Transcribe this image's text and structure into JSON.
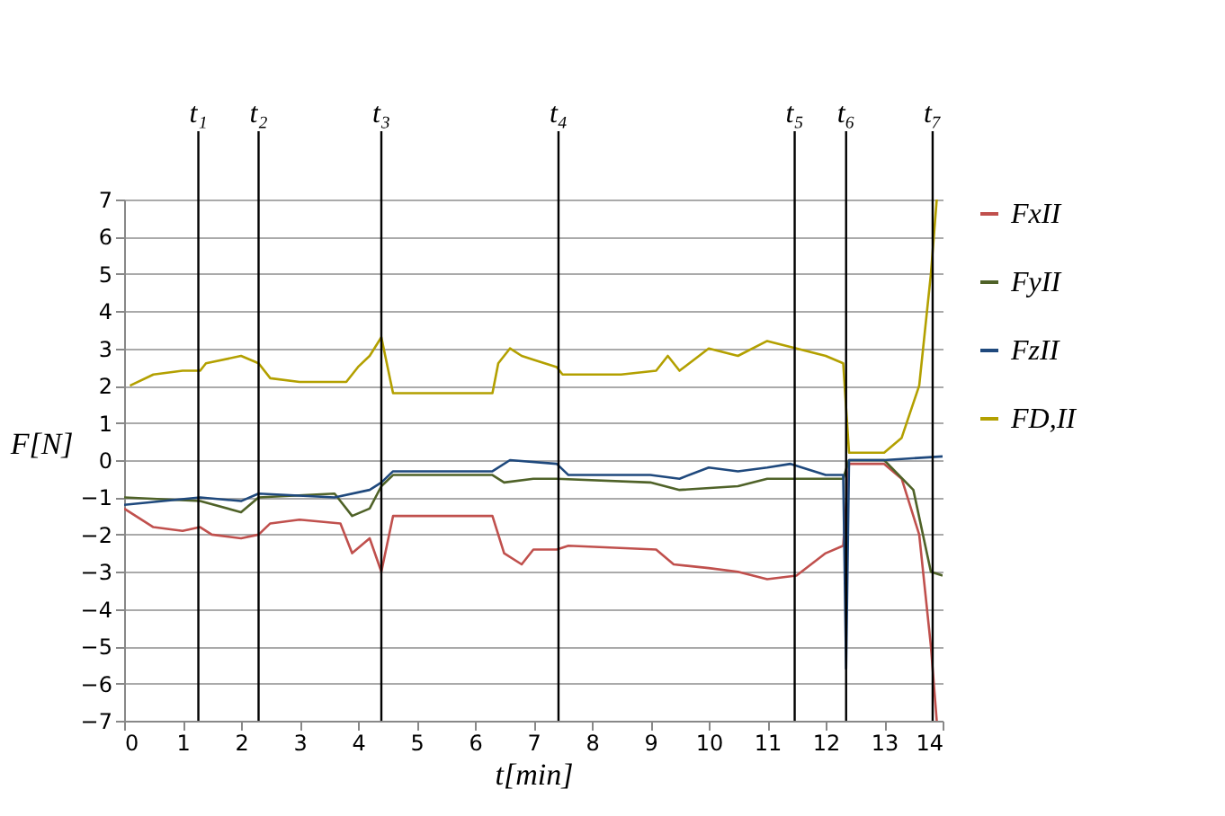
{
  "chart_data": {
    "type": "line",
    "xlabel": "t[min]",
    "ylabel": "F[N]",
    "xlim": [
      0,
      14
    ],
    "xticks": [
      0,
      1,
      2,
      3,
      4,
      5,
      6,
      7,
      8,
      9,
      10,
      11,
      12,
      13,
      14
    ],
    "ylim": [
      -7,
      7
    ],
    "yticks": [
      -7,
      -6,
      -5,
      -4,
      -3,
      -2,
      -1,
      0,
      1,
      2,
      3,
      4,
      5,
      6,
      7
    ],
    "grid": "y",
    "legend": "right",
    "marker": "none",
    "line_style": "solid",
    "ref_lines": [
      {
        "axis": "x",
        "value": 1.27,
        "label": "t₁",
        "color": "#000000"
      },
      {
        "axis": "x",
        "value": 2.3,
        "label": "t₂",
        "color": "#000000"
      },
      {
        "axis": "x",
        "value": 4.4,
        "label": "t₃",
        "color": "#000000"
      },
      {
        "axis": "x",
        "value": 7.43,
        "label": "t₄",
        "color": "#000000"
      },
      {
        "axis": "x",
        "value": 11.47,
        "label": "t₅",
        "color": "#000000"
      },
      {
        "axis": "x",
        "value": 12.35,
        "label": "t₆",
        "color": "#000000"
      },
      {
        "axis": "x",
        "value": 13.83,
        "label": "t₇",
        "color": "#000000"
      }
    ],
    "series": [
      {
        "name": "FxII",
        "color": "#c0504d",
        "x": [
          0,
          0.5,
          1.0,
          1.3,
          1.5,
          2.0,
          2.3,
          2.5,
          3.0,
          3.7,
          3.9,
          4.2,
          4.4,
          4.6,
          6.3,
          6.5,
          6.8,
          7.0,
          7.4,
          7.6,
          9.1,
          9.4,
          10,
          10.5,
          11,
          11.5,
          12,
          12.3,
          12.4,
          13,
          13.3,
          13.6,
          13.8,
          13.9
        ],
        "values": [
          -1.3,
          -1.8,
          -1.9,
          -1.8,
          -2.0,
          -2.1,
          -2.0,
          -1.7,
          -1.6,
          -1.7,
          -2.5,
          -2.1,
          -3.0,
          -1.5,
          -1.5,
          -2.5,
          -2.8,
          -2.4,
          -2.4,
          -2.3,
          -2.4,
          -2.8,
          -2.9,
          -3.0,
          -3.2,
          -3.1,
          -2.5,
          -2.3,
          -0.1,
          -0.1,
          -0.5,
          -2.0,
          -5.0,
          -7.0
        ]
      },
      {
        "name": "FyII",
        "color": "#4f6228",
        "x": [
          0,
          1.3,
          2.0,
          2.3,
          3.6,
          3.9,
          4.2,
          4.4,
          4.6,
          6.3,
          6.5,
          7.0,
          7.4,
          9.0,
          9.5,
          10.5,
          11,
          12.3,
          12.4,
          13.0,
          13.5,
          13.8,
          14
        ],
        "values": [
          -1.0,
          -1.1,
          -1.4,
          -1.0,
          -0.9,
          -1.5,
          -1.3,
          -0.7,
          -0.4,
          -0.4,
          -0.6,
          -0.5,
          -0.5,
          -0.6,
          -0.8,
          -0.7,
          -0.5,
          -0.5,
          0.0,
          0.0,
          -0.8,
          -3.0,
          -3.1
        ]
      },
      {
        "name": "FzII",
        "color": "#1f497d",
        "x": [
          0,
          1.3,
          2.0,
          2.3,
          3.6,
          4.2,
          4.4,
          4.6,
          6.3,
          6.6,
          7.4,
          7.6,
          9.0,
          9.5,
          10,
          10.5,
          11.0,
          11.4,
          12,
          12.3,
          12.35,
          12.4,
          13,
          14
        ],
        "values": [
          -1.2,
          -1.0,
          -1.1,
          -0.9,
          -1.0,
          -0.8,
          -0.6,
          -0.3,
          -0.3,
          0.0,
          -0.1,
          -0.4,
          -0.4,
          -0.5,
          -0.2,
          -0.3,
          -0.2,
          -0.1,
          -0.4,
          -0.4,
          -5.6,
          0.0,
          0.0,
          0.1
        ]
      },
      {
        "name": "FD,II",
        "color": "#b3a000",
        "x": [
          0.1,
          0.5,
          1.0,
          1.3,
          1.4,
          2.0,
          2.3,
          2.5,
          3.0,
          3.8,
          4.0,
          4.2,
          4.4,
          4.6,
          6.3,
          6.4,
          6.6,
          6.8,
          7.0,
          7.4,
          7.5,
          8.5,
          9.1,
          9.3,
          9.5,
          10,
          10.5,
          11,
          11.5,
          12,
          12.3,
          12.4,
          13,
          13.3,
          13.6,
          13.8,
          13.9
        ],
        "values": [
          2.0,
          2.3,
          2.4,
          2.4,
          2.6,
          2.8,
          2.6,
          2.2,
          2.1,
          2.1,
          2.5,
          2.8,
          3.3,
          1.8,
          1.8,
          2.6,
          3.0,
          2.8,
          2.7,
          2.5,
          2.3,
          2.3,
          2.4,
          2.8,
          2.4,
          3.0,
          2.8,
          3.2,
          3.0,
          2.8,
          2.6,
          0.2,
          0.2,
          0.6,
          2.0,
          5.0,
          7.0
        ]
      }
    ]
  }
}
